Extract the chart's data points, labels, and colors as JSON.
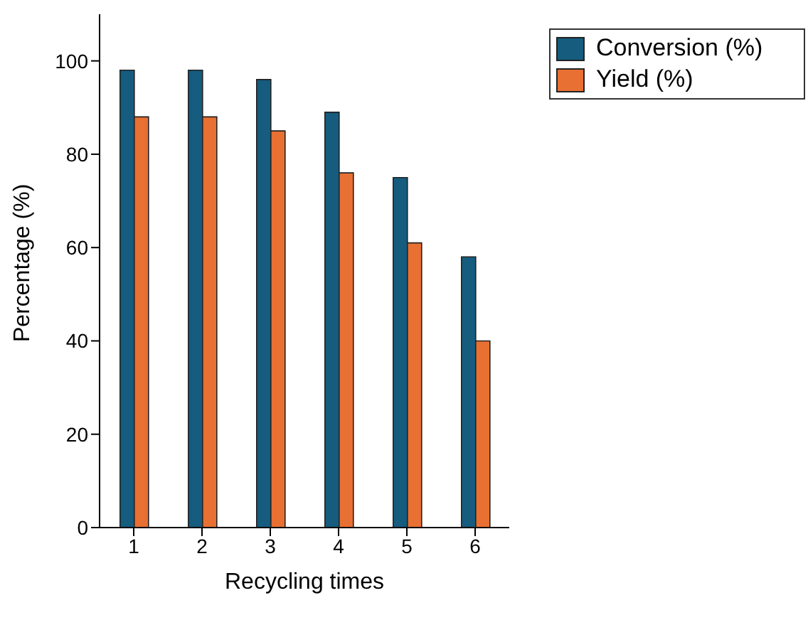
{
  "chart_data": {
    "type": "bar",
    "xlabel": "Recycling times",
    "ylabel": "Percentage (%)",
    "categories": [
      "1",
      "2",
      "3",
      "4",
      "5",
      "6"
    ],
    "series": [
      {
        "name": "Conversion (%)",
        "color": "#155c7e",
        "values": [
          98,
          98,
          96,
          89,
          75,
          58
        ]
      },
      {
        "name": "Yield (%)",
        "color": "#e87033",
        "values": [
          88,
          88,
          85,
          76,
          61,
          40
        ]
      }
    ],
    "ylim": [
      0,
      110
    ],
    "yticks": [
      0,
      20,
      40,
      60,
      80,
      100
    ],
    "grid": false,
    "legend": "top right"
  }
}
